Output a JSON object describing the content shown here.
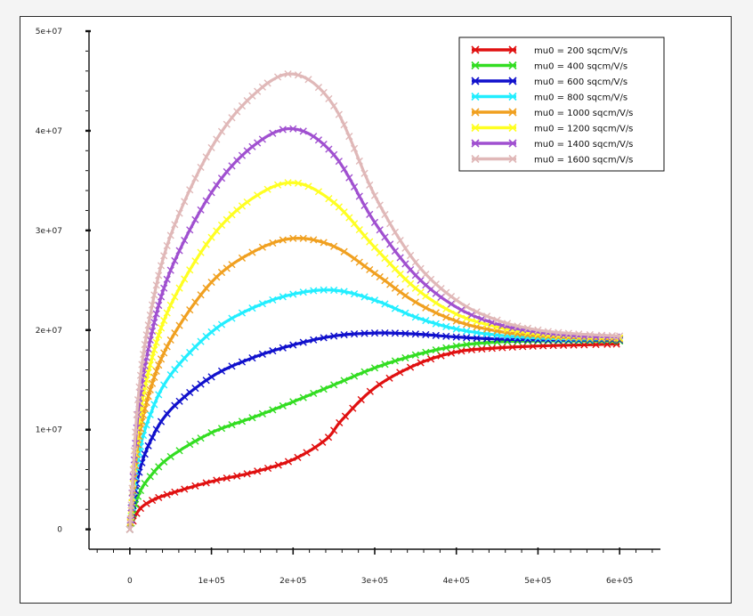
{
  "chart_data": {
    "type": "line",
    "title": "",
    "xlabel": "",
    "ylabel": "",
    "xlim": [
      -50000,
      650000
    ],
    "ylim": [
      -2000000,
      50000000
    ],
    "x_ticks": [
      {
        "value": 0,
        "label": "0"
      },
      {
        "value": 100000,
        "label": "1e+05"
      },
      {
        "value": 200000,
        "label": "2e+05"
      },
      {
        "value": 300000,
        "label": "3e+05"
      },
      {
        "value": 400000,
        "label": "4e+05"
      },
      {
        "value": 500000,
        "label": "5e+05"
      },
      {
        "value": 600000,
        "label": "6e+05"
      }
    ],
    "y_ticks": [
      {
        "value": 0,
        "label": "0"
      },
      {
        "value": 10000000,
        "label": "1e+07"
      },
      {
        "value": 20000000,
        "label": "2e+07"
      },
      {
        "value": 30000000,
        "label": "3e+07"
      },
      {
        "value": 40000000,
        "label": "4e+07"
      },
      {
        "value": 50000000,
        "label": "5e+07"
      }
    ],
    "grid": false,
    "legend_position": "top-right",
    "marker": "x",
    "series": [
      {
        "name": "mu0 = 200 sqcm/V/s",
        "color": "#e01010",
        "x": [
          0,
          10000,
          25000,
          50000,
          100000,
          150000,
          200000,
          240000,
          260000,
          300000,
          350000,
          400000,
          450000,
          500000,
          550000,
          600000
        ],
        "y": [
          0,
          1800000,
          2800000,
          3600000,
          4800000,
          5700000,
          7000000,
          9000000,
          11000000,
          14200000,
          16500000,
          17800000,
          18200000,
          18400000,
          18500000,
          18600000
        ]
      },
      {
        "name": "mu0 = 400 sqcm/V/s",
        "color": "#33dd22",
        "x": [
          0,
          10000,
          25000,
          50000,
          100000,
          150000,
          200000,
          250000,
          300000,
          350000,
          400000,
          450000,
          500000,
          550000,
          600000
        ],
        "y": [
          0,
          3300000,
          5300000,
          7300000,
          9700000,
          11200000,
          12800000,
          14500000,
          16200000,
          17500000,
          18400000,
          18800000,
          18900000,
          18900000,
          18900000
        ]
      },
      {
        "name": "mu0 = 600 sqcm/V/s",
        "color": "#1010cc",
        "x": [
          0,
          10000,
          25000,
          50000,
          100000,
          150000,
          200000,
          250000,
          300000,
          350000,
          400000,
          450000,
          500000,
          550000,
          600000
        ],
        "y": [
          0,
          5200000,
          8800000,
          12000000,
          15300000,
          17200000,
          18500000,
          19400000,
          19700000,
          19600000,
          19300000,
          19100000,
          19000000,
          19000000,
          19000000
        ]
      },
      {
        "name": "mu0 = 800 sqcm/V/s",
        "color": "#22eeff",
        "x": [
          0,
          10000,
          25000,
          50000,
          100000,
          150000,
          200000,
          250000,
          300000,
          350000,
          400000,
          450000,
          500000,
          550000,
          600000
        ],
        "y": [
          0,
          7000000,
          11500000,
          15500000,
          19800000,
          22200000,
          23600000,
          24000000,
          23000000,
          21300000,
          20100000,
          19500000,
          19200000,
          19100000,
          19100000
        ]
      },
      {
        "name": "mu0 = 1000 sqcm/V/s",
        "color": "#f0a020",
        "x": [
          0,
          10000,
          25000,
          50000,
          100000,
          150000,
          200000,
          250000,
          300000,
          350000,
          400000,
          450000,
          500000,
          550000,
          600000
        ],
        "y": [
          0,
          8500000,
          14000000,
          19000000,
          24800000,
          27800000,
          29200000,
          28400000,
          25700000,
          22800000,
          20900000,
          19900000,
          19400000,
          19200000,
          19100000
        ]
      },
      {
        "name": "mu0 = 1200 sqcm/V/s",
        "color": "#ffff22",
        "x": [
          0,
          10000,
          25000,
          50000,
          100000,
          150000,
          200000,
          250000,
          300000,
          350000,
          400000,
          450000,
          500000,
          550000,
          600000
        ],
        "y": [
          0,
          10000000,
          16500000,
          22500000,
          29300000,
          33200000,
          34800000,
          32800000,
          28300000,
          24200000,
          21600000,
          20300000,
          19600000,
          19300000,
          19200000
        ]
      },
      {
        "name": "mu0 = 1400 sqcm/V/s",
        "color": "#a050d0",
        "x": [
          0,
          10000,
          25000,
          50000,
          100000,
          150000,
          200000,
          250000,
          300000,
          350000,
          400000,
          450000,
          500000,
          550000,
          600000
        ],
        "y": [
          0,
          11500000,
          19000000,
          26000000,
          33800000,
          38400000,
          40200000,
          37600000,
          30800000,
          25500000,
          22300000,
          20600000,
          19800000,
          19400000,
          19300000
        ]
      },
      {
        "name": "mu0 = 1600 sqcm/V/s",
        "color": "#e0b8b8",
        "x": [
          0,
          10000,
          25000,
          50000,
          100000,
          150000,
          200000,
          250000,
          300000,
          350000,
          400000,
          450000,
          500000,
          550000,
          600000
        ],
        "y": [
          0,
          13000000,
          21500000,
          29500000,
          38300000,
          43500000,
          45700000,
          42500000,
          33500000,
          26800000,
          23000000,
          21000000,
          20000000,
          19600000,
          19400000
        ]
      }
    ]
  }
}
